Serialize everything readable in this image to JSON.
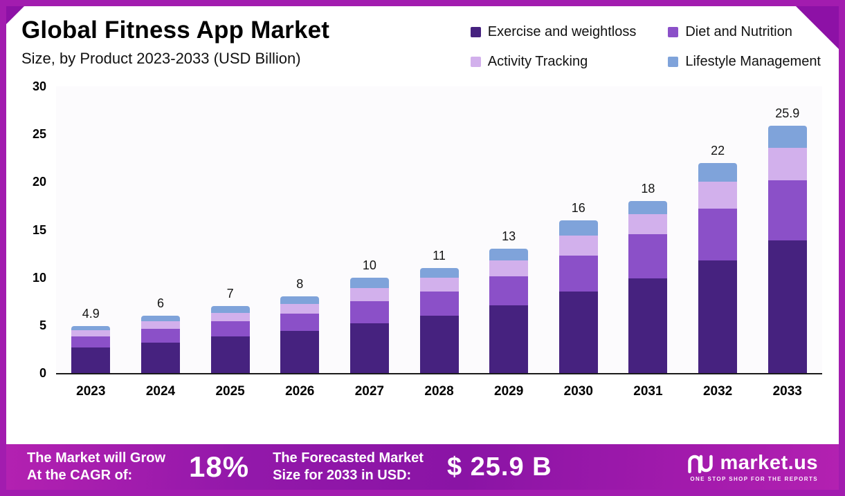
{
  "frame": {
    "border_color": "#a21caf"
  },
  "header": {
    "title": "Global Fitness App Market",
    "subtitle": "Size, by Product 2023-2033 (USD Billion)"
  },
  "chart_data": {
    "type": "bar",
    "stacked": true,
    "title": "Global Fitness App Market Size, by Product 2023-2033 (USD Billion)",
    "xlabel": "",
    "ylabel": "USD Billion",
    "ylim": [
      0,
      30
    ],
    "y_ticks": [
      30,
      25,
      20,
      15,
      10,
      5,
      0
    ],
    "grid": false,
    "legend_position": "top-right",
    "categories": [
      "2023",
      "2024",
      "2025",
      "2026",
      "2027",
      "2028",
      "2029",
      "2030",
      "2031",
      "2032",
      "2033"
    ],
    "totals_labels": [
      "4.9",
      "6",
      "7",
      "8",
      "10",
      "11",
      "13",
      "16",
      "18",
      "22",
      "25.9"
    ],
    "series": [
      {
        "name": "Exercise and weightloss",
        "color": "#46227f",
        "values": [
          2.7,
          3.2,
          3.8,
          4.4,
          5.2,
          6.0,
          7.1,
          8.5,
          9.9,
          11.8,
          13.9
        ]
      },
      {
        "name": "Diet and Nutrition",
        "color": "#8b50c8",
        "values": [
          1.1,
          1.4,
          1.6,
          1.8,
          2.3,
          2.5,
          3.0,
          3.8,
          4.6,
          5.4,
          6.3
        ]
      },
      {
        "name": "Activity Tracking",
        "color": "#d2b0ec",
        "values": [
          0.65,
          0.8,
          0.9,
          1.0,
          1.4,
          1.5,
          1.7,
          2.1,
          2.1,
          2.8,
          3.4
        ]
      },
      {
        "name": "Lifestyle Management",
        "color": "#7fa3da",
        "values": [
          0.45,
          0.6,
          0.7,
          0.8,
          1.1,
          1.0,
          1.2,
          1.6,
          1.4,
          2.0,
          2.3
        ]
      }
    ]
  },
  "banner": {
    "cagr_label_line1": "The Market will Grow",
    "cagr_label_line2": "At the CAGR of:",
    "cagr_value": "18%",
    "forecast_label_line1": "The Forecasted Market",
    "forecast_label_line2": "Size for 2033 in USD:",
    "forecast_value": "$ 25.9 B",
    "brand": "market.us",
    "brand_tagline": "ONE STOP SHOP FOR THE REPORTS"
  }
}
